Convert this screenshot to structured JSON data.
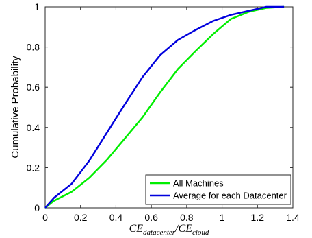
{
  "chart_data": {
    "type": "line",
    "title": "",
    "ylabel": "Cumulative Probability",
    "xlabel": {
      "base1": "CE",
      "sub1": "datacenter",
      "sep": "/",
      "base2": "CE",
      "sub2": "cloud"
    },
    "xlim": [
      0,
      1.4
    ],
    "ylim": [
      0,
      1
    ],
    "xticks": [
      0,
      0.2,
      0.4,
      0.6,
      0.8,
      1,
      1.2,
      1.4
    ],
    "yticks": [
      0,
      0.2,
      0.4,
      0.6,
      0.8,
      1
    ],
    "xtick_labels": [
      "0",
      "0.2",
      "0.4",
      "0.6",
      "0.8",
      "1",
      "1.2",
      "1.4"
    ],
    "ytick_labels": [
      "0",
      "0.2",
      "0.4",
      "0.6",
      "0.8",
      "1"
    ],
    "grid": false,
    "legend_position": "bottom-right",
    "series": [
      {
        "name": "All Machines",
        "color": "#00ee00",
        "x": [
          0,
          0.05,
          0.15,
          0.25,
          0.35,
          0.45,
          0.55,
          0.65,
          0.75,
          0.85,
          0.95,
          1.05,
          1.15,
          1.25,
          1.35
        ],
        "y": [
          0,
          0.035,
          0.08,
          0.15,
          0.24,
          0.345,
          0.45,
          0.575,
          0.69,
          0.78,
          0.865,
          0.94,
          0.975,
          0.995,
          1.0
        ]
      },
      {
        "name": "Average for each Datacenter",
        "color": "#0000dd",
        "x": [
          0,
          0.05,
          0.15,
          0.25,
          0.35,
          0.45,
          0.55,
          0.65,
          0.75,
          0.85,
          0.95,
          1.05,
          1.15,
          1.25,
          1.35
        ],
        "y": [
          0,
          0.05,
          0.12,
          0.235,
          0.375,
          0.515,
          0.65,
          0.76,
          0.835,
          0.885,
          0.93,
          0.96,
          0.98,
          1.0,
          1.0
        ]
      }
    ]
  }
}
